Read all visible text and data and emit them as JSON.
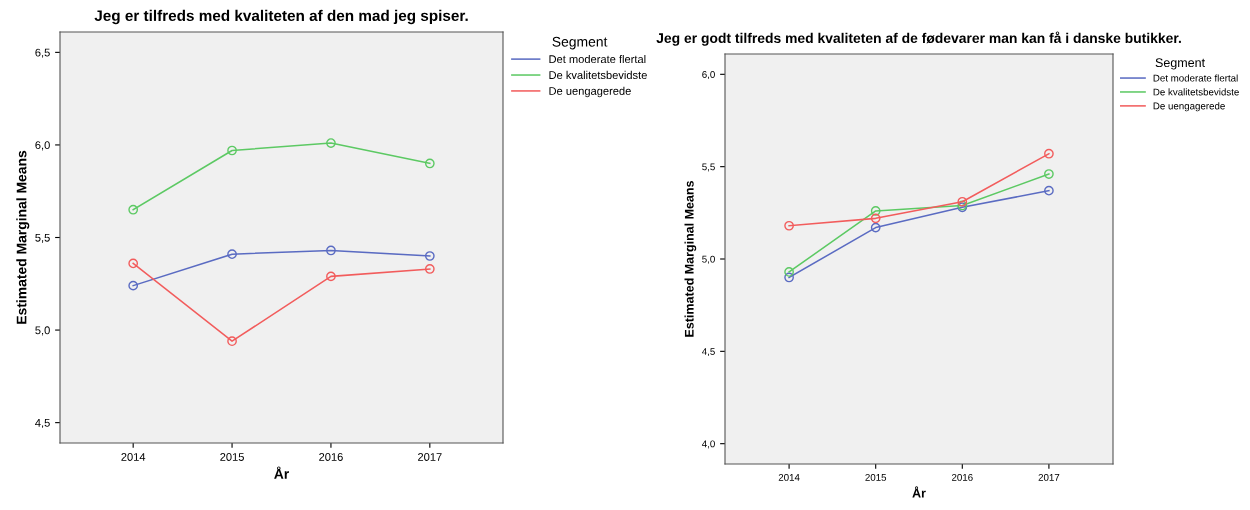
{
  "chart_data": [
    {
      "type": "line",
      "title": "Jeg er tilfreds med kvaliteten af den mad jeg spiser.",
      "xlabel": "År",
      "ylabel": "Estimated Marginal Means",
      "legend_title": "Segment",
      "legend": "right",
      "marker": "circle",
      "line_style": "solid",
      "grid": false,
      "categories": [
        "2014",
        "2015",
        "2016",
        "2017"
      ],
      "ylim": [
        4.39,
        6.61
      ],
      "yticks": [
        {
          "value": 4.5,
          "label": "4,5"
        },
        {
          "value": 5.0,
          "label": "5,0"
        },
        {
          "value": 5.5,
          "label": "5,5"
        },
        {
          "value": 6.0,
          "label": "6,0"
        },
        {
          "value": 6.5,
          "label": "6,5"
        }
      ],
      "series": [
        {
          "name": "Det moderate flertal",
          "color": "#5a6bc2",
          "values": [
            5.24,
            5.41,
            5.43,
            5.4
          ]
        },
        {
          "name": "De kvalitetsbevidste",
          "color": "#5cc963",
          "values": [
            5.65,
            5.97,
            6.01,
            5.9
          ]
        },
        {
          "name": "De uengagerede",
          "color": "#f25c5c",
          "values": [
            5.36,
            4.94,
            5.29,
            5.33
          ]
        }
      ]
    },
    {
      "type": "line",
      "title": "Jeg er godt tilfreds med kvaliteten af de fødevarer man kan få i danske butikker.",
      "xlabel": "År",
      "ylabel": "Estimated Marginal Means",
      "legend_title": "Segment",
      "legend": "right",
      "marker": "circle",
      "line_style": "solid",
      "grid": false,
      "categories": [
        "2014",
        "2015",
        "2016",
        "2017"
      ],
      "ylim": [
        3.89,
        6.11
      ],
      "yticks": [
        {
          "value": 4.0,
          "label": "4,0"
        },
        {
          "value": 4.5,
          "label": "4,5"
        },
        {
          "value": 5.0,
          "label": "5,0"
        },
        {
          "value": 5.5,
          "label": "5,5"
        },
        {
          "value": 6.0,
          "label": "6,0"
        }
      ],
      "series": [
        {
          "name": "Det moderate flertal",
          "color": "#5a6bc2",
          "values": [
            4.9,
            5.17,
            5.28,
            5.37
          ]
        },
        {
          "name": "De kvalitetsbevidste",
          "color": "#5cc963",
          "values": [
            4.93,
            5.26,
            5.29,
            5.46
          ]
        },
        {
          "name": "De uengagerede",
          "color": "#f25c5c",
          "values": [
            5.18,
            5.22,
            5.31,
            5.57
          ]
        }
      ]
    }
  ]
}
